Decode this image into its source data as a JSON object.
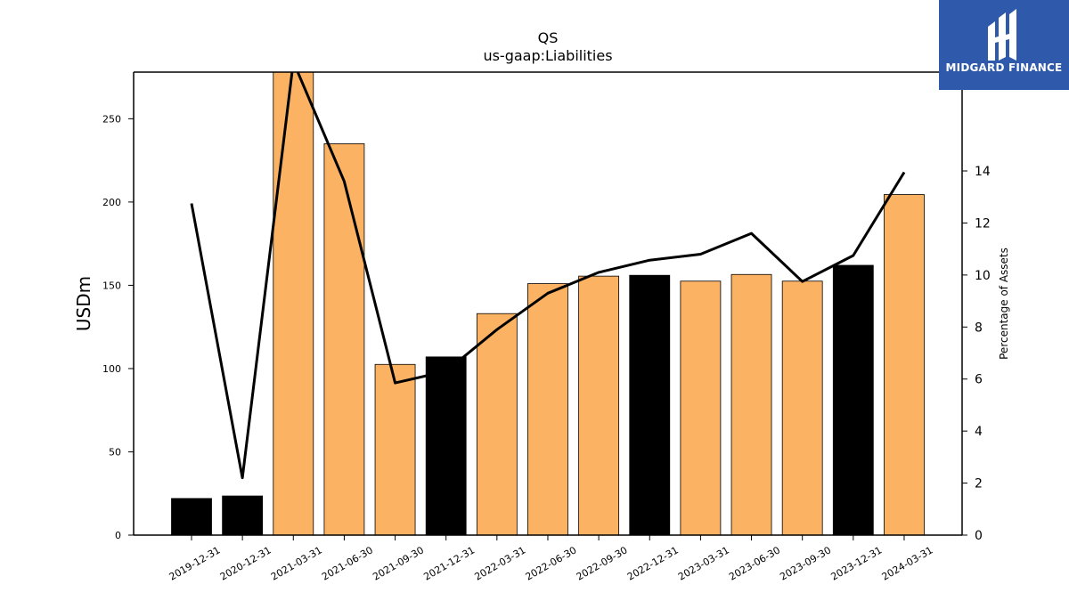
{
  "chart_data": {
    "type": "bar",
    "title": "QS",
    "subtitle": "us-gaap:Liabilities",
    "ylabel": "USDm",
    "y2label": "Percentage of Assets",
    "ylim": [
      0,
      278
    ],
    "y2lim": [
      0,
      17.8
    ],
    "yticks": [
      0,
      50,
      100,
      150,
      200,
      250
    ],
    "y2ticks": [
      0,
      2,
      4,
      6,
      8,
      10,
      12,
      14
    ],
    "categories": [
      "2019-12-31",
      "2020-12-31",
      "2021-03-31",
      "2021-06-30",
      "2021-09-30",
      "2021-12-31",
      "2022-03-31",
      "2022-06-30",
      "2022-09-30",
      "2022-12-31",
      "2023-03-31",
      "2023-06-30",
      "2023-09-30",
      "2023-12-31",
      "2024-03-31"
    ],
    "series": [
      {
        "type": "bar",
        "values": [
          22,
          23.5,
          280,
          235,
          102.5,
          107,
          133,
          151,
          155.5,
          156,
          152.5,
          156.5,
          152.5,
          162,
          204.5
        ],
        "highlight": [
          true,
          true,
          false,
          false,
          false,
          true,
          false,
          false,
          false,
          true,
          false,
          false,
          false,
          true,
          false
        ],
        "colors": {
          "normal": "#fbb262",
          "highlight": "#000000"
        }
      },
      {
        "type": "line",
        "axis": "right",
        "values": [
          12.75,
          2.2,
          18.2,
          13.6,
          5.85,
          6.3,
          7.9,
          9.3,
          10.1,
          10.57,
          10.8,
          11.6,
          9.75,
          10.75,
          13.95
        ],
        "color": "#000000"
      }
    ],
    "grid": false
  },
  "logo": {
    "text": "MIDGARD FINANCE",
    "color": "#2f5aab"
  }
}
